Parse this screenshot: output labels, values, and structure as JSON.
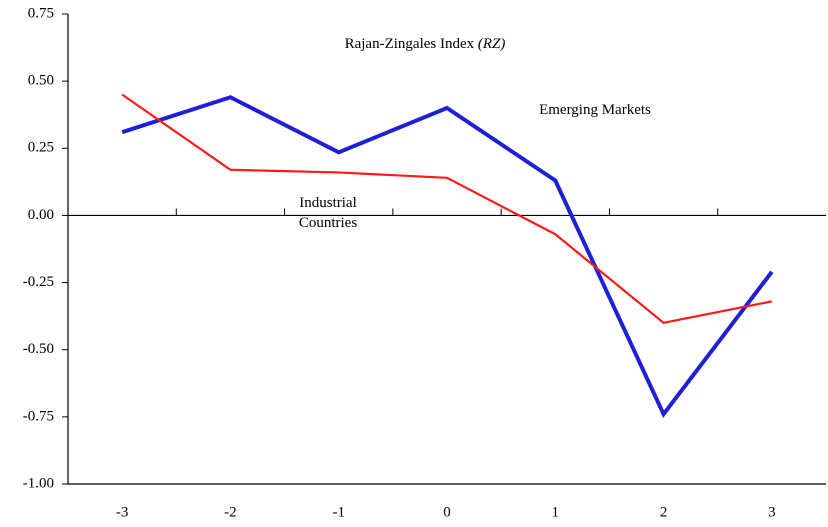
{
  "chart_data": {
    "type": "line",
    "title": "Rajan-Zingales Index",
    "title_emphasis": "(RZ)",
    "categories": [
      "-3",
      "-2",
      "-1",
      "0",
      "1",
      "2",
      "3"
    ],
    "series": [
      {
        "name": "Emerging Markets",
        "color": "#1f1fd6",
        "values": [
          0.31,
          0.44,
          0.235,
          0.4,
          0.13,
          -0.74,
          -0.21
        ]
      },
      {
        "name": "Industrial Countries",
        "color": "#ff1a1a",
        "values": [
          0.45,
          0.17,
          0.16,
          0.14,
          -0.07,
          -0.4,
          -0.32
        ]
      }
    ],
    "ylim": [
      -1.0,
      0.75
    ],
    "yticks": [
      0.75,
      {
        "value": 0.5,
        "label": "0.50"
      },
      0.25,
      {
        "value": 0,
        "label": "0.00"
      },
      -0.25,
      {
        "value": -0.5,
        "label": "-0.50"
      },
      -0.75,
      {
        "value": -1.0,
        "label": "-1.00"
      }
    ],
    "grid": false
  }
}
